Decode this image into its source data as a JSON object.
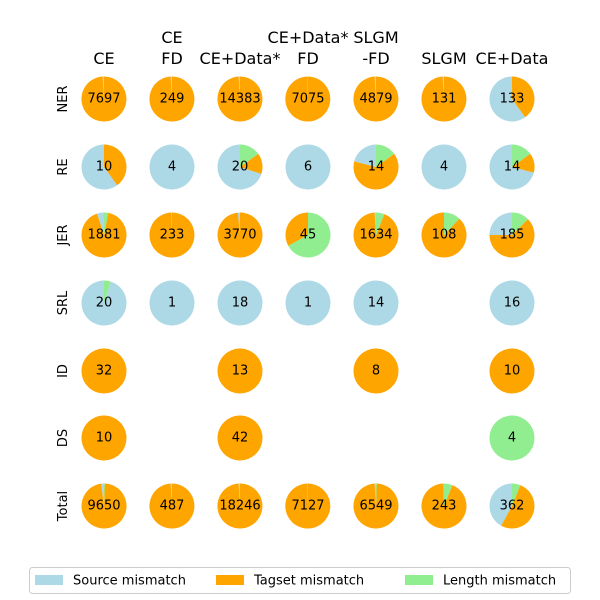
{
  "chart_data": {
    "type": "pie",
    "title": "",
    "columns": [
      [
        "CE"
      ],
      [
        "CE",
        "FD"
      ],
      [
        "CE+Data*"
      ],
      [
        "CE+Data*",
        "FD"
      ],
      [
        "SLGM",
        "-FD"
      ],
      [
        "SLGM"
      ],
      [
        "CE+Data"
      ]
    ],
    "rows": [
      "NER",
      "RE",
      "JER",
      "SRL",
      "ID",
      "DS",
      "Total"
    ],
    "series": [
      {
        "name": "Source mismatch",
        "color": "#add8e6"
      },
      {
        "name": "Tagset mismatch",
        "color": "#ffa500"
      },
      {
        "name": "Length mismatch",
        "color": "#90ee90"
      }
    ],
    "legend_position": "bottom",
    "cells": [
      [
        {
          "count": "7697",
          "fractions": [
            0.01,
            0.99,
            0
          ]
        },
        {
          "count": "249",
          "fractions": [
            0.01,
            0.99,
            0
          ]
        },
        {
          "count": "14383",
          "fractions": [
            0.01,
            0.99,
            0
          ]
        },
        {
          "count": "7075",
          "fractions": [
            0.003,
            0.997,
            0
          ]
        },
        {
          "count": "4879",
          "fractions": [
            0.01,
            0.99,
            0
          ]
        },
        {
          "count": "131",
          "fractions": [
            0.01,
            0.99,
            0
          ]
        },
        {
          "count": "133",
          "fractions": [
            0.6,
            0.4,
            0
          ]
        }
      ],
      [
        {
          "count": "10",
          "fractions": [
            0.6,
            0.4,
            0
          ]
        },
        {
          "count": "4",
          "fractions": [
            1,
            0,
            0
          ]
        },
        {
          "count": "20",
          "fractions": [
            0.7,
            0.15,
            0.15
          ]
        },
        {
          "count": "6",
          "fractions": [
            1,
            0,
            0
          ]
        },
        {
          "count": "14",
          "fractions": [
            0.21,
            0.64,
            0.15
          ]
        },
        {
          "count": "4",
          "fractions": [
            1,
            0,
            0
          ]
        },
        {
          "count": "14",
          "fractions": [
            0.71,
            0.14,
            0.15
          ]
        }
      ],
      [
        {
          "count": "1881",
          "fractions": [
            0.05,
            0.92,
            0.03
          ]
        },
        {
          "count": "233",
          "fractions": [
            0.005,
            0.995,
            0
          ]
        },
        {
          "count": "3770",
          "fractions": [
            0.015,
            0.985,
            0
          ]
        },
        {
          "count": "45",
          "fractions": [
            0,
            0.33,
            0.67
          ]
        },
        {
          "count": "1634",
          "fractions": [
            0.01,
            0.93,
            0.06
          ]
        },
        {
          "count": "108",
          "fractions": [
            0,
            0.88,
            0.12
          ]
        },
        {
          "count": "185",
          "fractions": [
            0.25,
            0.625,
            0.125
          ]
        }
      ],
      [
        {
          "count": "20",
          "fractions": [
            0.95,
            0,
            0.05
          ]
        },
        {
          "count": "1",
          "fractions": [
            1,
            0,
            0
          ]
        },
        {
          "count": "18",
          "fractions": [
            1,
            0,
            0
          ]
        },
        {
          "count": "1",
          "fractions": [
            1,
            0,
            0
          ]
        },
        {
          "count": "14",
          "fractions": [
            1,
            0,
            0
          ]
        },
        null,
        {
          "count": "16",
          "fractions": [
            1,
            0,
            0
          ]
        }
      ],
      [
        {
          "count": "32",
          "fractions": [
            0,
            1,
            0
          ]
        },
        null,
        {
          "count": "13",
          "fractions": [
            0,
            1,
            0
          ]
        },
        null,
        {
          "count": "8",
          "fractions": [
            0,
            1,
            0
          ]
        },
        null,
        {
          "count": "10",
          "fractions": [
            0,
            1,
            0
          ]
        }
      ],
      [
        {
          "count": "10",
          "fractions": [
            0,
            1,
            0
          ]
        },
        null,
        {
          "count": "42",
          "fractions": [
            0,
            1,
            0
          ]
        },
        null,
        null,
        null,
        {
          "count": "4",
          "fractions": [
            0,
            0,
            1
          ]
        }
      ],
      [
        {
          "count": "9650",
          "fractions": [
            0.02,
            0.975,
            0.005
          ]
        },
        {
          "count": "487",
          "fractions": [
            0.01,
            0.99,
            0
          ]
        },
        {
          "count": "18246",
          "fractions": [
            0.01,
            0.99,
            0
          ]
        },
        {
          "count": "7127",
          "fractions": [
            0.003,
            0.997,
            0
          ]
        },
        {
          "count": "6549",
          "fractions": [
            0.01,
            0.985,
            0.005
          ]
        },
        {
          "count": "243",
          "fractions": [
            0.005,
            0.935,
            0.06
          ]
        },
        {
          "count": "362",
          "fractions": [
            0.42,
            0.52,
            0.06
          ]
        }
      ]
    ]
  }
}
